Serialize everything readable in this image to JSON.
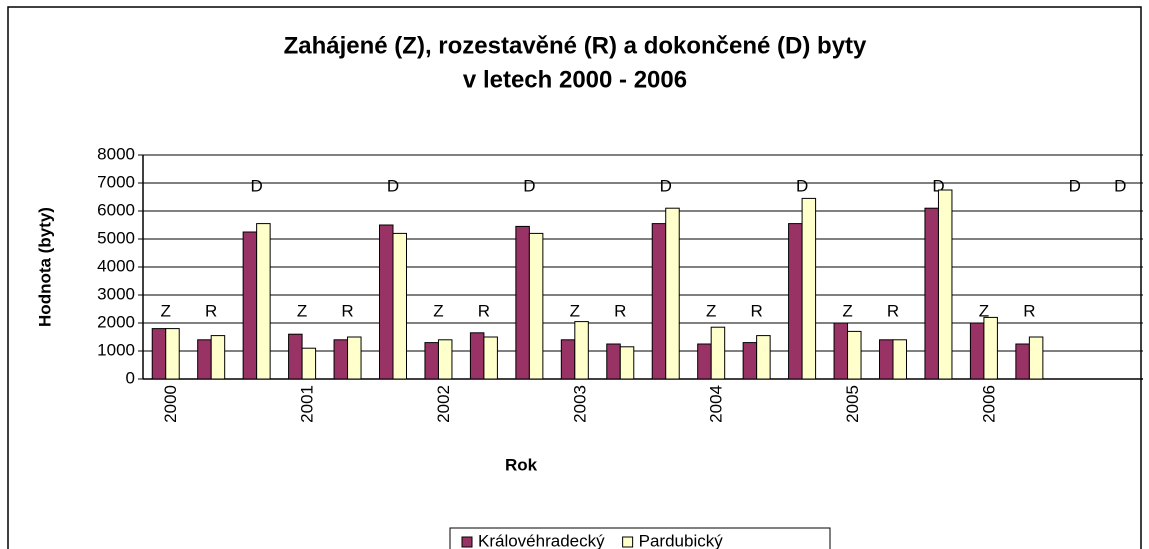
{
  "chart_data": {
    "type": "bar",
    "title": [
      "Zahájené (Z), rozestavěné (R) a dokončené (D) byty",
      "v letech 2000 - 2006"
    ],
    "x_label": "Rok",
    "y_label": "Hodnota (byty)",
    "categories": [
      "2000",
      null,
      null,
      "2001",
      null,
      null,
      "2002",
      null,
      null,
      "2003",
      null,
      null,
      "2004",
      null,
      null,
      "2005",
      null,
      null,
      "2006",
      null,
      null,
      null
    ],
    "group_labels": [
      "Z",
      "R",
      "D",
      "Z",
      "R",
      "D",
      "Z",
      "R",
      "D",
      "Z",
      "R",
      "D",
      "Z",
      "R",
      "D",
      "Z",
      "R",
      "D",
      "Z",
      "R",
      "D",
      "D"
    ],
    "series": [
      {
        "name": "Královéhradecký",
        "color": "#993366",
        "values": [
          1800,
          1400,
          5250,
          1600,
          1400,
          5500,
          1300,
          1650,
          5450,
          1400,
          1250,
          5550,
          1250,
          1300,
          5550,
          2000,
          1400,
          6100,
          2000,
          1250,
          null,
          null
        ]
      },
      {
        "name": "Pardubický",
        "color": "#ffffcc",
        "values": [
          1800,
          1550,
          5550,
          1100,
          1500,
          5200,
          1400,
          1500,
          5200,
          2050,
          1150,
          6100,
          1850,
          1550,
          6450,
          1700,
          1400,
          6750,
          2200,
          1500,
          null,
          null
        ]
      }
    ],
    "ylim": [
      0,
      8000
    ],
    "yticks": [
      0,
      1000,
      2000,
      3000,
      4000,
      5000,
      6000,
      7000,
      8000
    ],
    "grid": true,
    "legend": "bottom"
  }
}
